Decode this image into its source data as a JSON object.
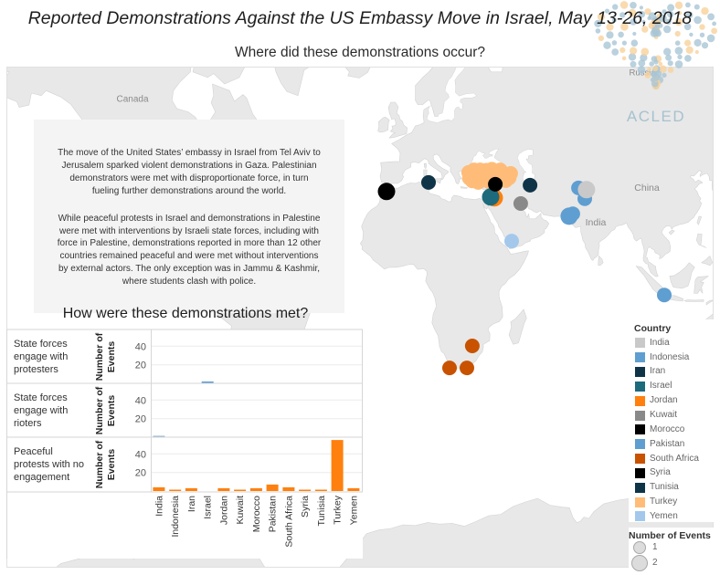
{
  "header": {
    "title": "Reported Demonstrations Against the US Embassy Move in Israel, May 13-26, 2018",
    "map_subtitle": "Where did these demonstrations occur?"
  },
  "logo": {
    "text": "ACLED"
  },
  "map": {
    "labels": {
      "canada": "Canada",
      "russia": "Russia",
      "china": "China",
      "india": "India"
    },
    "markers": [
      {
        "country": "Turkey",
        "lon": 27.1,
        "lat": 38.4,
        "events": 1
      },
      {
        "country": "Turkey",
        "lon": 26.8,
        "lat": 40.2,
        "events": 1
      },
      {
        "country": "Turkey",
        "lon": 29.0,
        "lat": 41.0,
        "events": 1
      },
      {
        "country": "Turkey",
        "lon": 28.3,
        "lat": 37.5,
        "events": 1
      },
      {
        "country": "Turkey",
        "lon": 30.5,
        "lat": 39.8,
        "events": 1
      },
      {
        "country": "Turkey",
        "lon": 30.7,
        "lat": 37.0,
        "events": 1
      },
      {
        "country": "Turkey",
        "lon": 31.5,
        "lat": 41.0,
        "events": 1
      },
      {
        "country": "Turkey",
        "lon": 32.5,
        "lat": 37.9,
        "events": 1
      },
      {
        "country": "Turkey",
        "lon": 32.9,
        "lat": 39.9,
        "events": 1
      },
      {
        "country": "Turkey",
        "lon": 33.5,
        "lat": 38.6,
        "events": 1
      },
      {
        "country": "Turkey",
        "lon": 34.0,
        "lat": 40.9,
        "events": 1
      },
      {
        "country": "Turkey",
        "lon": 35.3,
        "lat": 37.2,
        "events": 1
      },
      {
        "country": "Turkey",
        "lon": 35.5,
        "lat": 38.7,
        "events": 1
      },
      {
        "country": "Turkey",
        "lon": 36.3,
        "lat": 41.2,
        "events": 1
      },
      {
        "country": "Turkey",
        "lon": 36.8,
        "lat": 39.7,
        "events": 1
      },
      {
        "country": "Turkey",
        "lon": 37.4,
        "lat": 37.2,
        "events": 1
      },
      {
        "country": "Turkey",
        "lon": 38.3,
        "lat": 38.4,
        "events": 1
      },
      {
        "country": "Turkey",
        "lon": 38.5,
        "lat": 40.5,
        "events": 1
      },
      {
        "country": "Turkey",
        "lon": 39.7,
        "lat": 41.0,
        "events": 1
      },
      {
        "country": "Turkey",
        "lon": 40.2,
        "lat": 37.9,
        "events": 1
      },
      {
        "country": "Turkey",
        "lon": 41.3,
        "lat": 39.9,
        "events": 1
      },
      {
        "country": "Turkey",
        "lon": 42.0,
        "lat": 37.6,
        "events": 1
      },
      {
        "country": "Turkey",
        "lon": 43.4,
        "lat": 38.5,
        "events": 1
      },
      {
        "country": "Turkey",
        "lon": 44.0,
        "lat": 39.9,
        "events": 1
      },
      {
        "country": "Morocco",
        "lon": -6.8,
        "lat": 34.0,
        "events": 2
      },
      {
        "country": "Tunisia",
        "lon": 10.4,
        "lat": 37.0,
        "events": 1
      },
      {
        "country": "Jordan",
        "lon": 37.3,
        "lat": 31.8,
        "events": 2
      },
      {
        "country": "Israel",
        "lon": 35.8,
        "lat": 32.1,
        "events": 2
      },
      {
        "country": "Syria",
        "lon": 37.7,
        "lat": 36.4,
        "events": 1
      },
      {
        "country": "Iran",
        "lon": 51.9,
        "lat": 36.1,
        "events": 1
      },
      {
        "country": "Kuwait",
        "lon": 48.1,
        "lat": 29.8,
        "events": 1
      },
      {
        "country": "Yemen",
        "lon": 44.4,
        "lat": 15.7,
        "events": 1
      },
      {
        "country": "Pakistan",
        "lon": 71.7,
        "lat": 35.2,
        "events": 1
      },
      {
        "country": "Pakistan",
        "lon": 74.3,
        "lat": 31.5,
        "events": 1
      },
      {
        "country": "Pakistan",
        "lon": 69.4,
        "lat": 26.1,
        "events": 1
      },
      {
        "country": "Pakistan",
        "lon": 67.9,
        "lat": 25.2,
        "events": 2
      },
      {
        "country": "India",
        "lon": 75.0,
        "lat": 34.6,
        "events": 2
      },
      {
        "country": "Indonesia",
        "lon": 106.8,
        "lat": -6.2,
        "events": 1
      },
      {
        "country": "South Africa",
        "lon": 28.3,
        "lat": -26.1,
        "events": 1
      },
      {
        "country": "South Africa",
        "lon": 19.0,
        "lat": -33.9,
        "events": 1
      },
      {
        "country": "South Africa",
        "lon": 26.1,
        "lat": -33.9,
        "events": 1
      }
    ]
  },
  "intro": {
    "paragraphs": [
      [
        "The move of the United States’ embassy in Israel from Tel Aviv to",
        "Jerusalem sparked violent demonstrations in Gaza. Palestinian",
        "demonstrators were met with disproportionate force, in turn",
        "fueling further demonstrations around the world."
      ],
      [
        "While peaceful protests in Israel and demonstrations in Palestine",
        "were met with interventions by Israeli state forces, including with",
        "force in Palestine, demonstrations reported in more than 12 other",
        "countries remained peaceful and were met without interventions",
        "by external actors. The only exception was in Jammu & Kashmir,",
        "where students clash with police."
      ]
    ]
  },
  "chart_data": {
    "type": "bar",
    "title": "How were these demonstrations met?",
    "categories": [
      "India",
      "Indonesia",
      "Iran",
      "Israel",
      "Jordan",
      "Kuwait",
      "Morocco",
      "Pakistan",
      "South Africa",
      "Syria",
      "Tunisia",
      "Turkey",
      "Yemen"
    ],
    "xlabel": "",
    "ylabel": "Number of Events",
    "ylim": [
      0,
      58
    ],
    "yticks": [
      20,
      40
    ],
    "grid": true,
    "legend": "none",
    "series": [
      {
        "name": "State forces engage with protesters",
        "values": [
          0,
          0,
          0,
          2,
          0,
          0,
          0,
          0,
          0,
          0,
          0,
          0,
          0
        ],
        "color": "#5b9bd5"
      },
      {
        "name": "State forces engage with rioters",
        "values": [
          1,
          0,
          0,
          0,
          0,
          0,
          0,
          0,
          0,
          0,
          0,
          0,
          0
        ],
        "color": "#8fb2d2"
      },
      {
        "name": "Peaceful protests with no engagement",
        "values": [
          4,
          1,
          3,
          0,
          3,
          1,
          3,
          7,
          4,
          1,
          1,
          55,
          3
        ],
        "color": "#ff800e"
      }
    ]
  },
  "legend": {
    "title": "Country",
    "items": [
      {
        "label": "India",
        "color": "#c9c9c9"
      },
      {
        "label": "Indonesia",
        "color": "#5f9ed1"
      },
      {
        "label": "Iran",
        "color": "#0f3447"
      },
      {
        "label": "Israel",
        "color": "#1c6a7c"
      },
      {
        "label": "Jordan",
        "color": "#ff800e"
      },
      {
        "label": "Kuwait",
        "color": "#898989"
      },
      {
        "label": "Morocco",
        "color": "#000000"
      },
      {
        "label": "Pakistan",
        "color": "#5f9ed1"
      },
      {
        "label": "South Africa",
        "color": "#c85200"
      },
      {
        "label": "Syria",
        "color": "#000000"
      },
      {
        "label": "Tunisia",
        "color": "#0f3447"
      },
      {
        "label": "Turkey",
        "color": "#ffbc79"
      },
      {
        "label": "Yemen",
        "color": "#a3c8ec"
      }
    ],
    "size_title": "Number of Events",
    "size_items": [
      {
        "label": "1",
        "value": 1
      },
      {
        "label": "2",
        "value": 2
      }
    ]
  }
}
